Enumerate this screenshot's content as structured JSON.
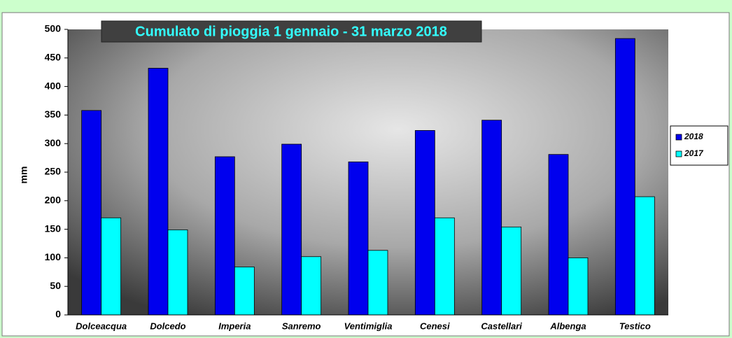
{
  "chart_data": {
    "type": "bar",
    "title": "Cumulato di pioggia 1 gennaio - 31 marzo 2018",
    "y_label": "mm",
    "categories": [
      "Dolceacqua",
      "Dolcedo",
      "Imperia",
      "Sanremo",
      "Ventimiglia",
      "Cenesi",
      "Castellari",
      "Albenga",
      "Testico"
    ],
    "series": [
      {
        "name": "2018",
        "color": "#0000ee",
        "values": [
          358,
          432,
          277,
          299,
          268,
          323,
          341,
          281,
          484
        ]
      },
      {
        "name": "2017",
        "color": "#00ffff",
        "values": [
          170,
          149,
          84,
          102,
          113,
          170,
          154,
          100,
          207
        ]
      }
    ],
    "ylim": [
      0,
      500
    ],
    "yticks": [
      0,
      50,
      100,
      150,
      200,
      250,
      300,
      350,
      400,
      450,
      500
    ],
    "legend": "right"
  }
}
